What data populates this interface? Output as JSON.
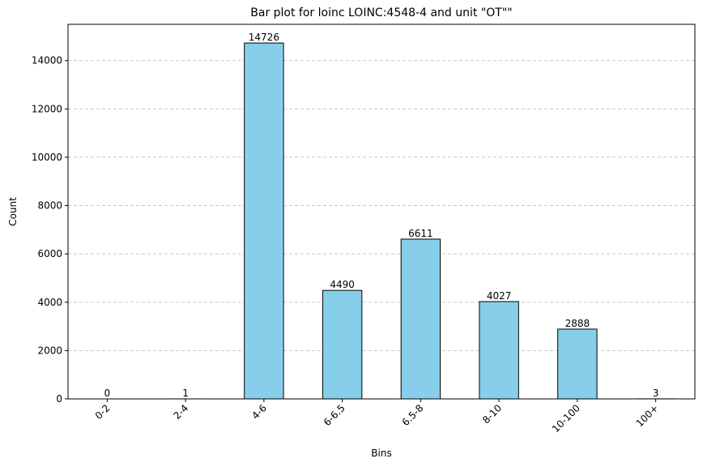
{
  "chart_data": {
    "type": "bar",
    "title": "Bar plot for loinc LOINC:4548-4 and unit \"OT\"\"",
    "xlabel": "Bins",
    "ylabel": "Count",
    "categories": [
      "0-2",
      "2-4",
      "4-6",
      "6-6.5",
      "6.5-8",
      "8-10",
      "10-100",
      "100+"
    ],
    "values": [
      0,
      1,
      14726,
      4490,
      6611,
      4027,
      2888,
      3
    ],
    "ylim": [
      0,
      15500
    ],
    "yticks": [
      0,
      2000,
      4000,
      6000,
      8000,
      10000,
      12000,
      14000
    ],
    "grid": "y-dashed",
    "bar_color": "#87ceeb",
    "edge_color": "#000000",
    "grid_color": "#c8c8c8",
    "tick_rotation": 45
  }
}
